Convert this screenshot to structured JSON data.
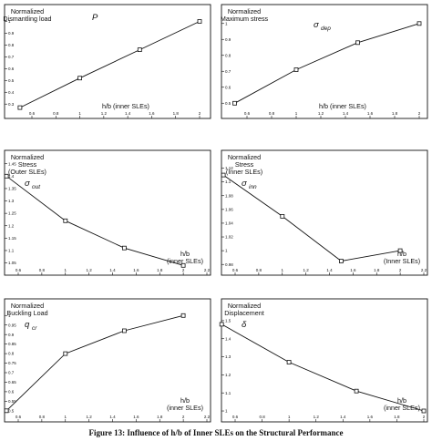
{
  "caption": "Figure 13: Influence of h/b of Inner SLEs on the Structural Performance",
  "chart_data": [
    {
      "type": "line",
      "title_lines": [
        "Normalized",
        "Dismantling load"
      ],
      "symbol": "P",
      "symbol_sub": "",
      "xlabel_lines": [
        "h/b (inner SLEs)"
      ],
      "xticks": [
        "0.6",
        "0.8",
        "1",
        "1.2",
        "1.4",
        "1.6",
        "1.8",
        "2"
      ],
      "ytick_labels": [
        "0.3",
        "0.4",
        "0.5",
        "0.6",
        "0.7",
        "0.8",
        "0.9",
        "1"
      ],
      "xlim": [
        0.5,
        2.1
      ],
      "ylim": [
        0.24,
        1.05
      ],
      "grid": false,
      "x": [
        0.5,
        1.0,
        1.5,
        2.0
      ],
      "y": [
        0.27,
        0.52,
        0.76,
        1.0
      ]
    },
    {
      "type": "line",
      "title_lines": [
        "Normalized",
        "Maximum stress"
      ],
      "symbol": "σ",
      "symbol_sub": "dep",
      "xlabel_lines": [
        "h/b (inner SLEs)"
      ],
      "xticks": [
        "0.6",
        "0.8",
        "1",
        "1.2",
        "1.4",
        "1.6",
        "1.8",
        "2"
      ],
      "ytick_labels": [
        "0.5",
        "0.6",
        "0.7",
        "0.8",
        "0.9",
        "1"
      ],
      "xlim": [
        0.5,
        2.1
      ],
      "ylim": [
        0.45,
        1.05
      ],
      "grid": false,
      "x": [
        0.5,
        1.0,
        1.5,
        2.0
      ],
      "y": [
        0.5,
        0.71,
        0.88,
        1.0
      ]
    },
    {
      "type": "line",
      "title_lines": [
        "Normalized",
        "Stress",
        "(Outer SLEs)"
      ],
      "symbol": "σ",
      "symbol_sub": "out",
      "xlabel_lines": [
        "h/b",
        "(inner SLEs)"
      ],
      "xticks": [
        "0.6",
        "0.8",
        "1",
        "1.2",
        "1.4",
        "1.6",
        "1.8",
        "2",
        "2.2"
      ],
      "ytick_labels": [
        "1.05",
        "1.1",
        "1.15",
        "1.2",
        "1.25",
        "1.3",
        "1.35",
        "1.4",
        "1.45"
      ],
      "xlim": [
        0.5,
        2.3
      ],
      "ylim": [
        1.03,
        1.46
      ],
      "grid": false,
      "x": [
        0.5,
        1.0,
        1.5,
        2.0
      ],
      "y": [
        1.4,
        1.22,
        1.11,
        1.04
      ]
    },
    {
      "type": "line",
      "title_lines": [
        "Normalized",
        "Stress",
        "(Inner SLEs)"
      ],
      "symbol": "σ",
      "symbol_sub": "inn",
      "xlabel_lines": [
        "h/b",
        "(Inner SLEs)"
      ],
      "xticks": [
        "0.6",
        "0.8",
        "1",
        "1.2",
        "1.4",
        "1.6",
        "1.8",
        "2",
        "2.2"
      ],
      "ytick_labels": [
        "0.98",
        "1",
        "1.02",
        "1.04",
        "1.06",
        "1.08",
        "1.1",
        "1.12"
      ],
      "xlim": [
        0.5,
        2.3
      ],
      "ylim": [
        0.975,
        1.13
      ],
      "grid": false,
      "x": [
        0.5,
        1.0,
        1.5,
        2.0
      ],
      "y": [
        1.11,
        1.05,
        0.985,
        1.0
      ]
    },
    {
      "type": "line",
      "title_lines": [
        "Normalized",
        "Buckling Load"
      ],
      "symbol": "q",
      "symbol_sub": "cr",
      "xlabel_lines": [
        "h/b",
        "(inner SLEs)"
      ],
      "xticks": [
        "0.6",
        "0.8",
        "1",
        "1.2",
        "1.4",
        "1.6",
        "1.8",
        "2",
        "2.2"
      ],
      "ytick_labels": [
        "0.5",
        "0.55",
        "0.6",
        "0.65",
        "0.7",
        "0.75",
        "0.8",
        "0.85",
        "0.9",
        "0.95",
        "1"
      ],
      "xlim": [
        0.5,
        2.3
      ],
      "ylim": [
        0.48,
        1.03
      ],
      "grid": false,
      "x": [
        0.5,
        1.0,
        1.5,
        2.0
      ],
      "y": [
        0.5,
        0.8,
        0.92,
        1.0
      ]
    },
    {
      "type": "line",
      "title_lines": [
        "Normalized",
        "Displacement"
      ],
      "symbol": "δ",
      "symbol_sub": "",
      "xlabel_lines": [
        "h/b",
        "(inner SLEs)"
      ],
      "xticks": [
        "0.6",
        "0.8",
        "1",
        "1.2",
        "1.4",
        "1.6",
        "1.8",
        "2"
      ],
      "ytick_labels": [
        "1",
        "1.1",
        "1.2",
        "1.3",
        "1.4",
        "1.5"
      ],
      "xlim": [
        0.5,
        2.1
      ],
      "ylim": [
        0.98,
        1.56
      ],
      "grid": false,
      "x": [
        0.5,
        1.0,
        1.5,
        2.0
      ],
      "y": [
        1.48,
        1.27,
        1.11,
        1.0
      ]
    }
  ]
}
